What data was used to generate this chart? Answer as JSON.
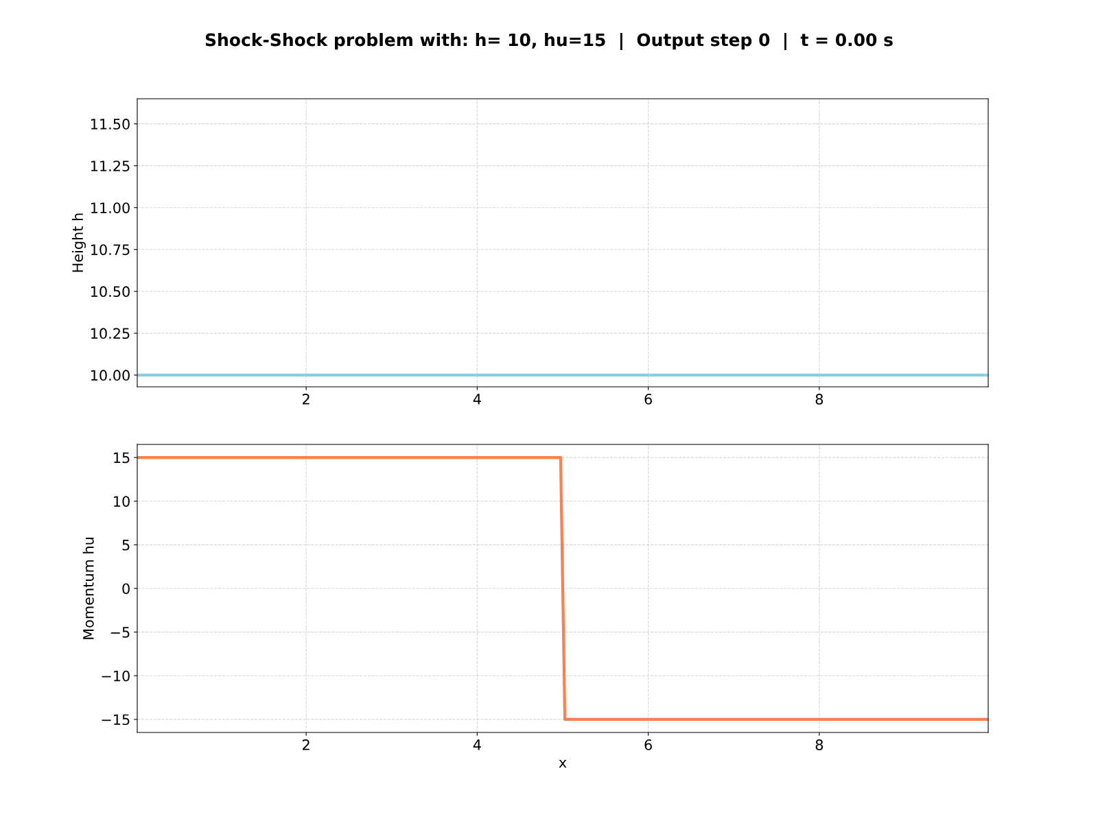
{
  "chart_data": [
    {
      "type": "line",
      "title": "Shock-Shock problem with: h= 10, hu=15  |  Output step 0  |  t = 0.00 s",
      "ylabel": "Height h",
      "series": [
        {
          "color": "#87ceeb",
          "x": [
            0.025,
            9.975
          ],
          "values": [
            10,
            10
          ]
        }
      ],
      "xlim": [
        0.025,
        9.975
      ],
      "xticks": [
        2,
        4,
        6,
        8
      ],
      "ylim": [
        9.93,
        11.65
      ],
      "yticks": [
        {
          "value": 10,
          "label": "10.00"
        },
        {
          "value": 10.25,
          "label": "10.25"
        },
        {
          "value": 10.5,
          "label": "10.50"
        },
        {
          "value": 10.75,
          "label": "10.75"
        },
        {
          "value": 11,
          "label": "11.00"
        },
        {
          "value": 11.25,
          "label": "11.25"
        },
        {
          "value": 11.5,
          "label": "11.50"
        }
      ],
      "grid": true,
      "line_style": "solid",
      "marker": "none"
    },
    {
      "type": "line",
      "xlabel": "x",
      "ylabel": "Momentum hu",
      "series": [
        {
          "color": "#ff7f50",
          "x": [
            0.025,
            4.975,
            5.025,
            9.975
          ],
          "values": [
            15,
            15,
            -15,
            -15
          ]
        }
      ],
      "xlim": [
        0.025,
        9.975
      ],
      "xticks": [
        2,
        4,
        6,
        8
      ],
      "ylim": [
        -16.5,
        16.5
      ],
      "yticks": [
        15,
        10,
        5,
        0,
        {
          "value": -5,
          "label": "−5"
        },
        {
          "value": -10,
          "label": "−10"
        },
        {
          "value": -15,
          "label": "−15"
        }
      ],
      "grid": true,
      "line_style": "solid",
      "marker": "none"
    }
  ]
}
